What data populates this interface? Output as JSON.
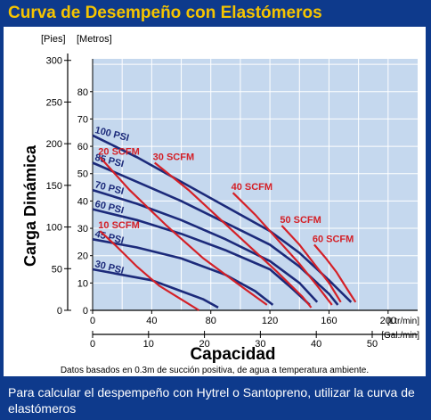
{
  "header": {
    "title": "Curva de Desempeño con Elastómeros"
  },
  "footer": {
    "text": "Para calcular el despempeño con Hytrel o Santopreno, utilizar la curva de elastómeros"
  },
  "colors": {
    "background": "#0e3a8c",
    "title": "#f5c400",
    "plot_bg": "#c5d8ee",
    "psi_curve": "#1c2a7a",
    "scfm_curve": "#d42027"
  },
  "chart_data": {
    "type": "line",
    "ylabel": "Carga Dinámica",
    "xlabel": "Capacidad",
    "note": "Datos basados en 0.3m de succión positiva, de agua a temperatura ambiente.",
    "y_left_unit": "[Pies]",
    "y_right_unit": "[Metros]",
    "x_top_unit": "[Ltr/min]",
    "x_bottom_unit": "[Gal./min]",
    "y_meters_ticks": [
      "0",
      "10",
      "20",
      "30",
      "40",
      "50",
      "60",
      "70",
      "80"
    ],
    "y_feet_ticks": [
      "0",
      "50",
      "100",
      "150",
      "200",
      "250",
      "300"
    ],
    "x_lpm_ticks": [
      "0",
      "40",
      "80",
      "120",
      "160",
      "200"
    ],
    "x_gpm_ticks": [
      "0",
      "10",
      "20",
      "30",
      "40",
      "50"
    ],
    "xlim_lpm": [
      0,
      220
    ],
    "ylim_m": [
      0,
      92
    ],
    "grid": true,
    "psi_series": [
      {
        "name": "100 PSI",
        "points": [
          [
            0,
            64
          ],
          [
            30,
            56
          ],
          [
            60,
            47
          ],
          [
            90,
            38
          ],
          [
            120,
            29
          ],
          [
            140,
            21
          ],
          [
            160,
            11
          ],
          [
            175,
            3
          ]
        ]
      },
      {
        "name": "85 PSI",
        "points": [
          [
            0,
            54
          ],
          [
            30,
            47
          ],
          [
            60,
            40
          ],
          [
            90,
            32
          ],
          [
            120,
            24
          ],
          [
            140,
            16
          ],
          [
            160,
            6
          ],
          [
            166,
            2
          ]
        ]
      },
      {
        "name": "70 PSI",
        "points": [
          [
            0,
            44
          ],
          [
            30,
            39
          ],
          [
            60,
            33
          ],
          [
            90,
            26
          ],
          [
            120,
            18
          ],
          [
            140,
            10
          ],
          [
            152,
            3
          ]
        ]
      },
      {
        "name": "60 PSI",
        "points": [
          [
            0,
            37
          ],
          [
            30,
            33
          ],
          [
            60,
            28
          ],
          [
            90,
            22
          ],
          [
            120,
            15
          ],
          [
            135,
            8
          ],
          [
            147,
            2
          ]
        ]
      },
      {
        "name": "45 PSI",
        "points": [
          [
            0,
            26
          ],
          [
            30,
            23
          ],
          [
            60,
            19
          ],
          [
            90,
            13
          ],
          [
            110,
            7
          ],
          [
            122,
            2
          ]
        ]
      },
      {
        "name": "30 PSI",
        "points": [
          [
            0,
            15
          ],
          [
            20,
            13
          ],
          [
            40,
            11
          ],
          [
            60,
            7
          ],
          [
            75,
            4
          ],
          [
            85,
            1
          ]
        ]
      }
    ],
    "scfm_series": [
      {
        "name": "10 SCFM",
        "points": [
          [
            5,
            29
          ],
          [
            15,
            24
          ],
          [
            30,
            16
          ],
          [
            45,
            9
          ],
          [
            60,
            4
          ],
          [
            72,
            0
          ]
        ]
      },
      {
        "name": "20 SCFM",
        "points": [
          [
            5,
            56
          ],
          [
            25,
            44
          ],
          [
            50,
            31
          ],
          [
            75,
            19
          ],
          [
            100,
            9
          ],
          [
            118,
            2
          ]
        ]
      },
      {
        "name": "30 SCFM",
        "points": [
          [
            42,
            54
          ],
          [
            65,
            44
          ],
          [
            85,
            34
          ],
          [
            105,
            24
          ],
          [
            125,
            14
          ],
          [
            142,
            5
          ],
          [
            148,
            1
          ]
        ]
      },
      {
        "name": "40 SCFM",
        "points": [
          [
            95,
            43
          ],
          [
            110,
            35
          ],
          [
            125,
            26
          ],
          [
            140,
            17
          ],
          [
            152,
            9
          ],
          [
            162,
            2
          ]
        ]
      },
      {
        "name": "50 SCFM",
        "points": [
          [
            128,
            31
          ],
          [
            140,
            24
          ],
          [
            150,
            17
          ],
          [
            160,
            10
          ],
          [
            168,
            3
          ]
        ]
      },
      {
        "name": "60 SCFM",
        "points": [
          [
            150,
            24
          ],
          [
            158,
            19
          ],
          [
            165,
            14
          ],
          [
            172,
            8
          ],
          [
            178,
            3
          ]
        ]
      }
    ]
  }
}
